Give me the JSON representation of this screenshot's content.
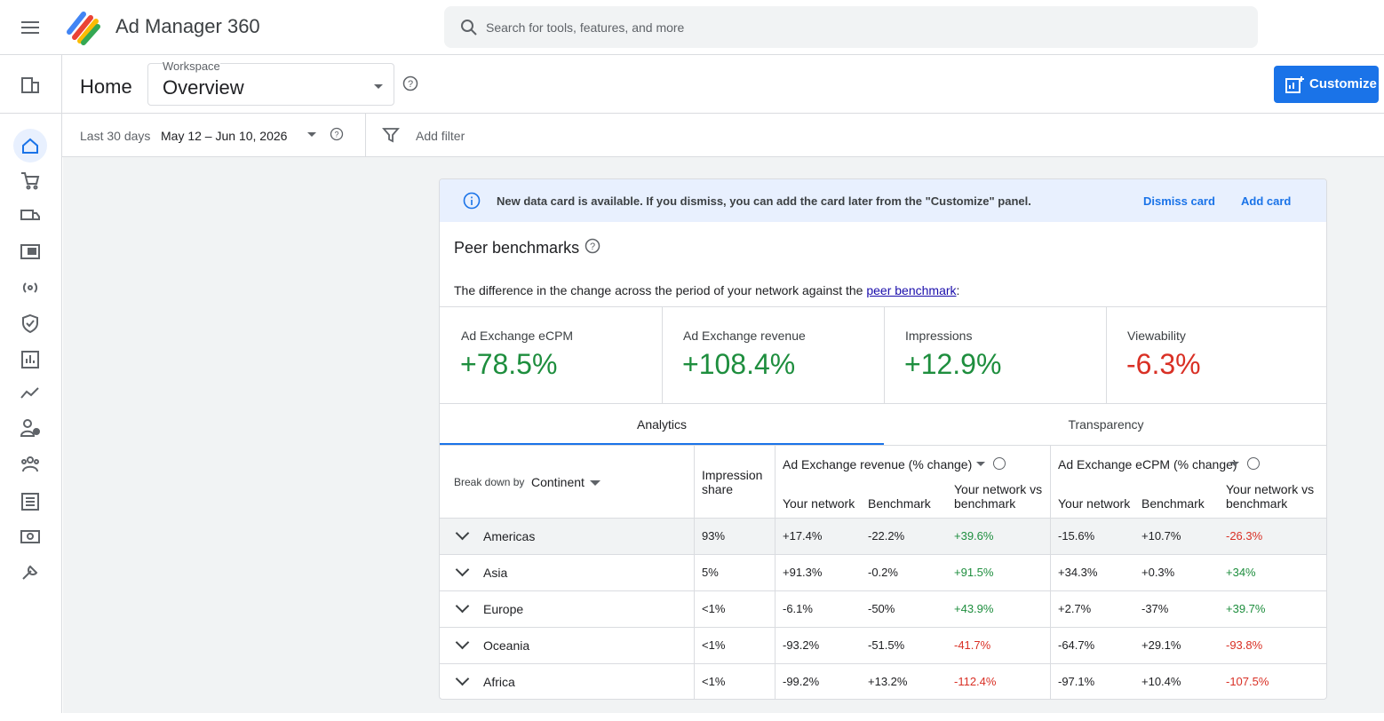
{
  "header": {
    "app_name": "Ad Manager 360",
    "search_placeholder": "Search for tools, features, and more"
  },
  "toolbar": {
    "page_title": "Home",
    "workspace_label": "Workspace",
    "workspace_value": "Overview",
    "customize_button": "Customize"
  },
  "filters": {
    "range_label": "Last 30 days",
    "range_value": "May 12 – Jun 10, 2026",
    "add_filter": "Add filter"
  },
  "banner": {
    "message": "New data card is available. If you dismiss, you can add the card later from the \"Customize\" panel.",
    "dismiss": "Dismiss card",
    "add": "Add card"
  },
  "card": {
    "title": "Peer benchmarks",
    "description": "The difference in the change across the period of your network against the ",
    "description_link": "peer benchmark",
    "description_end": ":",
    "metrics": [
      {
        "label": "Ad Exchange eCPM",
        "value": "+78.5%"
      },
      {
        "label": "Ad Exchange revenue",
        "value": "+108.4%"
      },
      {
        "label": "Impressions",
        "value": "+12.9%"
      },
      {
        "label": "Viewability",
        "value": "-6.3%"
      }
    ],
    "tabs": [
      "Analytics",
      "Transparency"
    ],
    "table": {
      "breakdown_label": "Break down by",
      "breakdown_value": "Continent",
      "impression_share": "Impression share",
      "groups": [
        {
          "title": "Ad Exchange revenue (% change)",
          "columns": [
            "Your network",
            "Benchmark",
            "Your network vs benchmark"
          ]
        },
        {
          "title": "Ad Exchange eCPM (% change)",
          "columns": [
            "Your network",
            "Benchmark",
            "Your network vs benchmark"
          ]
        }
      ],
      "rows": [
        [
          "Americas",
          "93%",
          "+17.4%",
          "-22.2%",
          "+39.6%",
          "-15.6%",
          "+10.7%",
          "-26.3%"
        ],
        [
          "Asia",
          "5%",
          "+91.3%",
          "-0.2%",
          "+91.5%",
          "+34.3%",
          "+0.3%",
          "+34%"
        ],
        [
          "Europe",
          "<1%",
          "-6.1%",
          "-50%",
          "+43.9%",
          "+2.7%",
          "-37%",
          "+39.7%"
        ],
        [
          "Oceania",
          "<1%",
          "-93.2%",
          "-51.5%",
          "-41.7%",
          "-64.7%",
          "+29.1%",
          "-93.8%"
        ],
        [
          "Africa",
          "<1%",
          "-99.2%",
          "+13.2%",
          "-112.4%",
          "-97.1%",
          "+10.4%",
          "-107.5%"
        ]
      ]
    }
  }
}
